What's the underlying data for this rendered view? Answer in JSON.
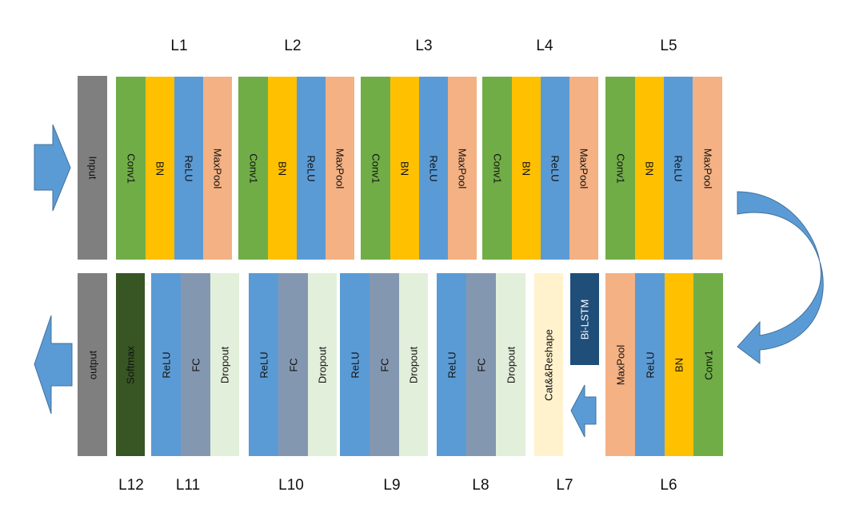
{
  "colors": {
    "conv": "#70ad47",
    "bn": "#ffc000",
    "relu": "#5b9bd5",
    "maxpool": "#f4b183",
    "io": "#7f7f7f",
    "fc": "#8497b0",
    "dropout": "#e2efda",
    "softmax": "#375623",
    "cat": "#fff2cc",
    "bilstm": "#1f4e79",
    "arrow": "#5b9bd5"
  },
  "top_labels": [
    "L1",
    "L2",
    "L3",
    "L4",
    "L5"
  ],
  "bottom_labels": [
    "L12",
    "L11",
    "L10",
    "L9",
    "L8",
    "L7",
    "L6"
  ],
  "blocks": {
    "input": "Input",
    "output": "output",
    "conv": "Conv1",
    "bn": "BN",
    "relu": "ReLU",
    "maxpool": "MaxPool",
    "fc": "FC",
    "dropout": "Dropout",
    "softmax": "Softmax",
    "cat": "Cat&&Reshape",
    "bilstm": "Bi-LSTM"
  }
}
